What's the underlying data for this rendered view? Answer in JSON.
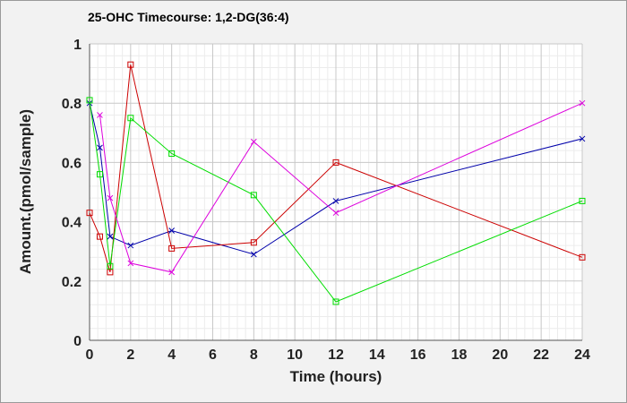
{
  "chart_data": {
    "type": "line",
    "title": "25-OHC Timecourse: 1,2-DG(36:4)",
    "xlabel": "Time (hours)",
    "ylabel": "Amount.(pmol/sample)",
    "xlim": [
      0,
      24
    ],
    "ylim": [
      0,
      1
    ],
    "xticks": [
      0,
      2,
      4,
      6,
      8,
      10,
      12,
      14,
      16,
      18,
      20,
      22,
      24
    ],
    "yticks": [
      0,
      0.2,
      0.4,
      0.6,
      0.8,
      1
    ],
    "ytick_labels": [
      "0",
      "0.2",
      "0.4",
      "0.6",
      "0.8",
      "1"
    ],
    "grid": true,
    "legend": "none",
    "series": [
      {
        "color": "#0000aa",
        "marker": "x",
        "x": [
          0,
          0.5,
          1,
          2,
          4,
          8,
          12,
          24
        ],
        "y": [
          0.8,
          0.65,
          0.35,
          0.32,
          0.37,
          0.29,
          0.47,
          0.68
        ]
      },
      {
        "color": "#cc0000",
        "marker": "square",
        "x": [
          0,
          0.5,
          1,
          2,
          4,
          8,
          12,
          24
        ],
        "y": [
          0.43,
          0.35,
          0.23,
          0.93,
          0.31,
          0.33,
          0.6,
          0.28
        ]
      },
      {
        "color": "#00dd00",
        "marker": "square",
        "x": [
          0,
          0.5,
          1,
          2,
          4,
          8,
          12,
          24
        ],
        "y": [
          0.81,
          0.56,
          0.25,
          0.75,
          0.63,
          0.49,
          0.13,
          0.47
        ]
      },
      {
        "color": "#dd00dd",
        "marker": "x",
        "x": [
          0.5,
          1,
          2,
          4,
          8,
          12,
          24
        ],
        "y": [
          0.76,
          0.48,
          0.26,
          0.23,
          0.67,
          0.43,
          0.8
        ]
      }
    ]
  }
}
